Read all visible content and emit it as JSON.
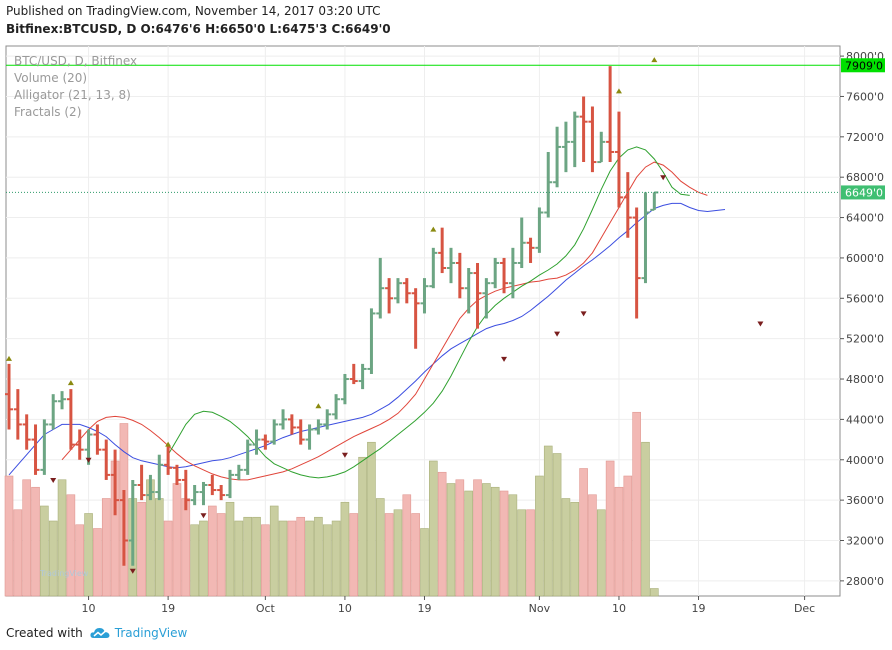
{
  "header": {
    "published": "Published on TradingView.com, November 14, 2017 03:20 UTC",
    "symbol_line": "Bitfinex:BTCUSD, D  O:6476'6 H:6650'0 L:6475'3 C:6649'0"
  },
  "legend": {
    "title": "BTC/USD, D, Bitfinex",
    "volume": "Volume (20)",
    "alligator": "Alligator (21, 13, 8)",
    "fractals": "Fractals (2)"
  },
  "footer": {
    "created_with": "Created with",
    "brand": "TradingView",
    "watermark": "TradingView"
  },
  "colors": {
    "up": "#6ca583",
    "down": "#d75442",
    "vol_up": "#c9cea0",
    "vol_down": "#f2b8b4",
    "jaw": "#3c4ee0",
    "teeth": "#e0453a",
    "lips": "#2fa12f",
    "hline": "#00e000",
    "price_tag": "#3fbf72"
  },
  "chart_data": {
    "type": "ohlc",
    "title": "BTC/USD, D, Bitfinex",
    "ylim": [
      2650,
      8100
    ],
    "y_ticks": [
      "8000'0",
      "7600'0",
      "7200'0",
      "6800'0",
      "6400'0",
      "6000'0",
      "5600'0",
      "5200'0",
      "4800'0",
      "4400'0",
      "4000'0",
      "3600'0",
      "3200'0",
      "2800'0"
    ],
    "y_tick_values": [
      8000,
      7600,
      7200,
      6800,
      6400,
      6000,
      5600,
      5200,
      4800,
      4400,
      4000,
      3600,
      3200,
      2800
    ],
    "x_ticks": [
      {
        "label": "10",
        "day": 9
      },
      {
        "label": "19",
        "day": 18
      },
      {
        "label": "Oct",
        "day": 29
      },
      {
        "label": "10",
        "day": 38
      },
      {
        "label": "19",
        "day": 47
      },
      {
        "label": "Nov",
        "day": 60
      },
      {
        "label": "10",
        "day": 69
      },
      {
        "label": "19",
        "day": 78
      },
      {
        "label": "Dec",
        "day": 90
      }
    ],
    "horizontal_line": {
      "value": 7909,
      "label": "7909'0"
    },
    "last_price": {
      "value": 6649,
      "label": "6649'0"
    },
    "ohlc": [
      [
        4650,
        4950,
        4300,
        4500
      ],
      [
        4500,
        4700,
        4200,
        4350
      ],
      [
        4350,
        4450,
        4100,
        4200
      ],
      [
        4200,
        4350,
        3850,
        3900
      ],
      [
        3900,
        4400,
        3850,
        4350
      ],
      [
        4350,
        4650,
        4300,
        4580
      ],
      [
        4580,
        4680,
        4500,
        4600
      ],
      [
        4600,
        4700,
        4100,
        4150
      ],
      [
        4150,
        4300,
        4000,
        4100
      ],
      [
        4100,
        4300,
        3950,
        4250
      ],
      [
        4250,
        4350,
        4050,
        4100
      ],
      [
        4100,
        4200,
        3800,
        3850
      ],
      [
        3850,
        4100,
        3450,
        3600
      ],
      [
        3600,
        3700,
        2950,
        3200
      ],
      [
        3200,
        3800,
        2950,
        3750
      ],
      [
        3750,
        3950,
        3600,
        3650
      ],
      [
        3650,
        3850,
        3600,
        3680
      ],
      [
        3680,
        4050,
        3600,
        3950
      ],
      [
        3950,
        4150,
        3850,
        3920
      ],
      [
        3920,
        3950,
        3750,
        3800
      ],
      [
        3800,
        3900,
        3500,
        3600
      ],
      [
        3600,
        3750,
        3550,
        3680
      ],
      [
        3680,
        3780,
        3550,
        3750
      ],
      [
        3750,
        3850,
        3650,
        3700
      ],
      [
        3700,
        3750,
        3600,
        3650
      ],
      [
        3650,
        3900,
        3620,
        3850
      ],
      [
        3850,
        3950,
        3800,
        3900
      ],
      [
        3900,
        4200,
        3850,
        4150
      ],
      [
        4150,
        4300,
        4050,
        4200
      ],
      [
        4200,
        4250,
        4100,
        4180
      ],
      [
        4180,
        4400,
        4150,
        4350
      ],
      [
        4350,
        4500,
        4300,
        4400
      ],
      [
        4400,
        4450,
        4250,
        4320
      ],
      [
        4320,
        4400,
        4150,
        4200
      ],
      [
        4200,
        4350,
        4100,
        4300
      ],
      [
        4300,
        4400,
        4250,
        4350
      ],
      [
        4350,
        4500,
        4300,
        4450
      ],
      [
        4450,
        4650,
        4400,
        4600
      ],
      [
        4600,
        4850,
        4550,
        4800
      ],
      [
        4800,
        4950,
        4750,
        4780
      ],
      [
        4780,
        4950,
        4700,
        4900
      ],
      [
        4900,
        5500,
        4850,
        5450
      ],
      [
        5450,
        6000,
        5400,
        5700
      ],
      [
        5700,
        5800,
        5450,
        5600
      ],
      [
        5600,
        5800,
        5550,
        5750
      ],
      [
        5750,
        5800,
        5550,
        5650
      ],
      [
        5650,
        5700,
        5100,
        5550
      ],
      [
        5550,
        5800,
        5450,
        5720
      ],
      [
        5720,
        6100,
        5700,
        6050
      ],
      [
        6050,
        6300,
        5850,
        5900
      ],
      [
        5900,
        6100,
        5750,
        5950
      ],
      [
        5950,
        6050,
        5600,
        5700
      ],
      [
        5700,
        5900,
        5450,
        5850
      ],
      [
        5850,
        5950,
        5300,
        5650
      ],
      [
        5650,
        5800,
        5400,
        5750
      ],
      [
        5750,
        6000,
        5700,
        5950
      ],
      [
        5950,
        6000,
        5650,
        5750
      ],
      [
        5750,
        6100,
        5600,
        5950
      ],
      [
        5950,
        6400,
        5900,
        6150
      ],
      [
        6150,
        6200,
        5950,
        6100
      ],
      [
        6100,
        6500,
        6050,
        6450
      ],
      [
        6450,
        7050,
        6400,
        6750
      ],
      [
        6750,
        7300,
        6700,
        7100
      ],
      [
        7100,
        7350,
        6850,
        7150
      ],
      [
        7150,
        7450,
        6900,
        7400
      ],
      [
        7400,
        7600,
        6950,
        7350
      ],
      [
        7350,
        7500,
        6850,
        6950
      ],
      [
        6950,
        7250,
        6950,
        7150
      ],
      [
        7150,
        7900,
        6950,
        7050
      ],
      [
        7050,
        7450,
        6500,
        6600
      ],
      [
        6600,
        6850,
        6200,
        6400
      ],
      [
        6400,
        6500,
        5400,
        5800
      ],
      [
        5800,
        6650,
        5750,
        6450
      ],
      [
        6476.6,
        6650,
        6475.3,
        6649
      ]
    ],
    "volume": [
      32,
      23,
      31,
      29,
      24,
      20,
      31,
      27,
      19,
      22,
      18,
      26,
      36,
      46,
      26,
      25,
      31,
      26,
      20,
      30,
      26,
      19,
      20,
      24,
      22,
      25,
      20,
      21,
      21,
      19,
      24,
      20,
      20,
      21,
      20,
      21,
      19,
      20,
      25,
      22,
      37,
      41,
      26,
      22,
      23,
      27,
      22,
      18,
      36,
      33,
      30,
      31,
      28,
      31,
      30,
      29,
      28,
      27,
      23,
      23,
      32,
      40,
      38,
      26,
      25,
      34,
      27,
      23,
      36,
      29,
      32,
      49,
      41,
      2
    ],
    "alligator": {
      "jaw": [
        3850,
        3950,
        4050,
        4150,
        4250,
        4300,
        4350,
        4350,
        4350,
        4320,
        4280,
        4230,
        4150,
        4080,
        4020,
        3990,
        3970,
        3950,
        3930,
        3920,
        3930,
        3950,
        3970,
        3990,
        4000,
        4020,
        4050,
        4080,
        4110,
        4140,
        4180,
        4220,
        4250,
        4280,
        4300,
        4320,
        4340,
        4360,
        4380,
        4400,
        4420,
        4450,
        4500,
        4550,
        4620,
        4700,
        4780,
        4870,
        4950,
        5030,
        5100,
        5150,
        5200,
        5250,
        5300,
        5330,
        5350,
        5380,
        5420,
        5480,
        5550,
        5620,
        5700,
        5780,
        5850,
        5920,
        5980,
        6050,
        6120,
        6200,
        6270,
        6350,
        6420,
        6490,
        6520,
        6540,
        6540,
        6500,
        6470,
        6460,
        6470,
        6480
      ],
      "teeth": [
        4000,
        4100,
        4200,
        4300,
        4380,
        4420,
        4430,
        4420,
        4390,
        4350,
        4290,
        4220,
        4140,
        4060,
        3990,
        3940,
        3900,
        3860,
        3830,
        3810,
        3800,
        3800,
        3820,
        3840,
        3860,
        3880,
        3910,
        3950,
        3990,
        4030,
        4080,
        4130,
        4180,
        4230,
        4270,
        4310,
        4350,
        4400,
        4460,
        4550,
        4650,
        4800,
        4950,
        5100,
        5250,
        5400,
        5500,
        5580,
        5630,
        5670,
        5700,
        5720,
        5740,
        5760,
        5770,
        5790,
        5800,
        5830,
        5880,
        5950,
        6050,
        6200,
        6350,
        6500,
        6650,
        6800,
        6900,
        6950,
        6920,
        6850,
        6760,
        6700,
        6650,
        6620
      ],
      "lips": [
        4050,
        4200,
        4350,
        4450,
        4480,
        4470,
        4430,
        4380,
        4310,
        4230,
        4130,
        4030,
        3960,
        3920,
        3880,
        3850,
        3830,
        3820,
        3830,
        3850,
        3880,
        3930,
        3990,
        4050,
        4110,
        4180,
        4250,
        4320,
        4390,
        4470,
        4560,
        4680,
        4830,
        5000,
        5170,
        5320,
        5440,
        5530,
        5600,
        5660,
        5720,
        5770,
        5830,
        5880,
        5940,
        6020,
        6130,
        6290,
        6480,
        6680,
        6860,
        6990,
        7070,
        7100,
        7070,
        6980,
        6850,
        6700,
        6630,
        6620
      ]
    },
    "fractals": {
      "up": [
        [
          0,
          5000
        ],
        [
          7,
          4760
        ],
        [
          18,
          4150
        ],
        [
          35,
          4530
        ],
        [
          48,
          6280
        ],
        [
          69,
          7650
        ],
        [
          73,
          7960
        ]
      ],
      "down": [
        [
          5,
          3800
        ],
        [
          9,
          4000
        ],
        [
          14,
          2900
        ],
        [
          22,
          3450
        ],
        [
          38,
          4050
        ],
        [
          56,
          5000
        ],
        [
          62,
          5250
        ],
        [
          65,
          5450
        ],
        [
          74,
          6800
        ],
        [
          85,
          5350
        ]
      ]
    },
    "alligator_start_day": {
      "jaw": 0,
      "teeth": 6,
      "lips": 18
    }
  }
}
